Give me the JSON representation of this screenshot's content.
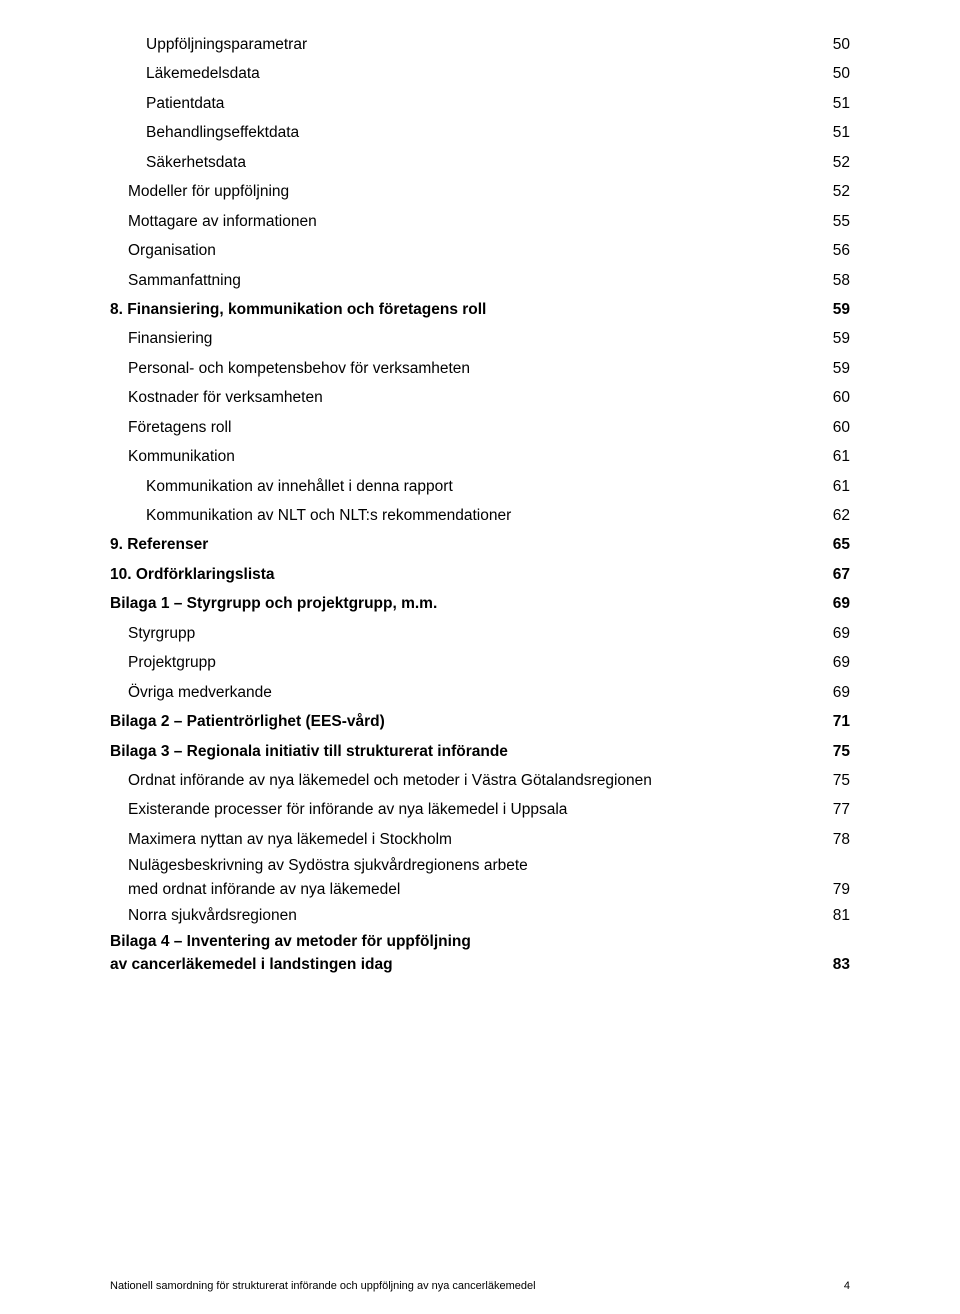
{
  "toc": [
    {
      "title": "Uppföljningsparametrar",
      "page": "50",
      "indent": 2,
      "bold": false
    },
    {
      "title": "Läkemedelsdata",
      "page": "50",
      "indent": 2,
      "bold": false
    },
    {
      "title": "Patientdata",
      "page": "51",
      "indent": 2,
      "bold": false
    },
    {
      "title": "Behandlingseffektdata",
      "page": "51",
      "indent": 2,
      "bold": false
    },
    {
      "title": "Säkerhetsdata",
      "page": "52",
      "indent": 2,
      "bold": false
    },
    {
      "title": "Modeller för uppföljning",
      "page": "52",
      "indent": 1,
      "bold": false
    },
    {
      "title": "Mottagare av informationen",
      "page": "55",
      "indent": 1,
      "bold": false
    },
    {
      "title": "Organisation",
      "page": "56",
      "indent": 1,
      "bold": false
    },
    {
      "title": "Sammanfattning",
      "page": "58",
      "indent": 1,
      "bold": false
    },
    {
      "title": "8. Finansiering, kommunikation och företagens roll",
      "page": "59",
      "indent": 0,
      "bold": true
    },
    {
      "title": "Finansiering",
      "page": "59",
      "indent": 1,
      "bold": false
    },
    {
      "title": "Personal- och kompetensbehov för verksamheten",
      "page": "59",
      "indent": 1,
      "bold": false
    },
    {
      "title": "Kostnader för verksamheten",
      "page": "60",
      "indent": 1,
      "bold": false
    },
    {
      "title": "Företagens roll",
      "page": "60",
      "indent": 1,
      "bold": false
    },
    {
      "title": "Kommunikation",
      "page": "61",
      "indent": 1,
      "bold": false
    },
    {
      "title": "Kommunikation av innehållet i denna rapport",
      "page": "61",
      "indent": 2,
      "bold": false
    },
    {
      "title": "Kommunikation av NLT och NLT:s rekommendationer",
      "page": "62",
      "indent": 2,
      "bold": false
    },
    {
      "title": "9. Referenser",
      "page": "65",
      "indent": 0,
      "bold": true
    },
    {
      "title": "10. Ordförklaringslista",
      "page": "67",
      "indent": 0,
      "bold": true
    },
    {
      "title": "Bilaga 1 – Styrgrupp och projektgrupp, m.m.",
      "page": "69",
      "indent": 0,
      "bold": true
    },
    {
      "title": "Styrgrupp",
      "page": "69",
      "indent": 1,
      "bold": false
    },
    {
      "title": "Projektgrupp",
      "page": "69",
      "indent": 1,
      "bold": false
    },
    {
      "title": "Övriga medverkande",
      "page": "69",
      "indent": 1,
      "bold": false
    },
    {
      "title": "Bilaga 2 – Patientrörlighet (EES-vård)",
      "page": "71",
      "indent": 0,
      "bold": true
    },
    {
      "title": "Bilaga 3 – Regionala initiativ till strukturerat införande",
      "page": "75",
      "indent": 0,
      "bold": true
    },
    {
      "title": "Ordnat införande av nya läkemedel och metoder  i Västra Götalandsregionen",
      "page": "75",
      "indent": 1,
      "bold": false,
      "noLeader": true
    },
    {
      "title": "Existerande processer för införande av nya läkemedel i Uppsala",
      "page": "77",
      "indent": 1,
      "bold": false
    },
    {
      "title": "Maximera nyttan av nya läkemedel i Stockholm",
      "page": "78",
      "indent": 1,
      "bold": false
    },
    {
      "title": "Nulägesbeskrivning av Sydöstra sjukvårdregionens arbete  med ordnat införande av nya läkemedel",
      "page": "79",
      "indent": 1,
      "bold": false,
      "wrap": true
    },
    {
      "title": "Norra sjukvårdsregionen",
      "page": "81",
      "indent": 1,
      "bold": false
    },
    {
      "title": "Bilaga 4 – Inventering av metoder för uppföljning  av cancerläkemedel i landstingen idag",
      "page": "83",
      "indent": 0,
      "bold": true,
      "wrap": true
    }
  ],
  "footer": {
    "text": "Nationell samordning för strukturerat införande och uppföljning av nya cancerläkemedel",
    "page": "4"
  }
}
